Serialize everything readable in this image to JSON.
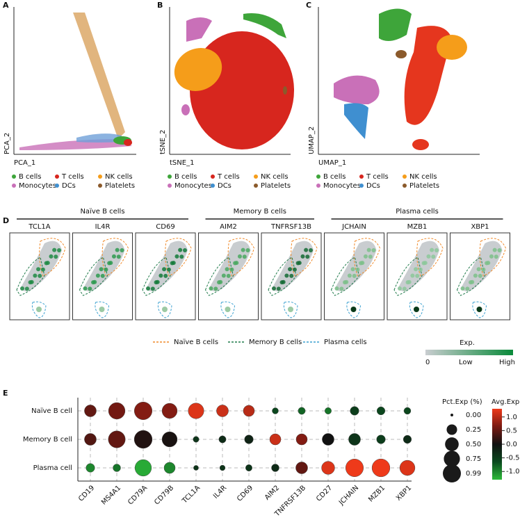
{
  "panel_a": {
    "label": "A",
    "x_label": "PCA_1",
    "y_label": "PCA_2"
  },
  "panel_b": {
    "label": "B",
    "x_label": "tSNE_1",
    "y_label": "tSNE_2"
  },
  "panel_c": {
    "label": "C",
    "x_label": "UMAP_1",
    "y_label": "UMAP_2"
  },
  "cell_types": [
    {
      "name": "B cells",
      "color": "#3ea53a"
    },
    {
      "name": "T cells",
      "color": "#d7261e"
    },
    {
      "name": "NK cells",
      "color": "#f59d1a"
    },
    {
      "name": "Monocytes",
      "color": "#c970b8"
    },
    {
      "name": "DCs",
      "color": "#3f8fd0"
    },
    {
      "name": "Platelets",
      "color": "#8b5a2b"
    }
  ],
  "panel_d": {
    "label": "D",
    "groups": [
      {
        "name": "Naïve B cells",
        "genes": [
          "TCL1A",
          "IL4R",
          "CD69"
        ]
      },
      {
        "name": "Memory B cells",
        "genes": [
          "AIM2",
          "TNFRSF13B"
        ]
      },
      {
        "name": "Plasma cells",
        "genes": [
          "JCHAIN",
          "MZB1",
          "XBP1"
        ]
      }
    ],
    "outlines": [
      {
        "name": "Naïve B cells",
        "color": "#f08a2a"
      },
      {
        "name": "Memory B cells",
        "color": "#1f7a4a"
      },
      {
        "name": "Plasma cells",
        "color": "#3aa0d0"
      }
    ],
    "exp_title": "Exp.",
    "exp_labels": [
      "0",
      "Low",
      "High"
    ]
  },
  "chart_data": {
    "type": "dotplot",
    "label": "E",
    "categories": [
      "CD19",
      "MS4A1",
      "CD79A",
      "CD79B",
      "TCL1A",
      "IL4R",
      "CD69",
      "AIM2",
      "TNFRSF13B",
      "CD27",
      "JCHAIN",
      "MZB1",
      "XBP1"
    ],
    "series": [
      {
        "name": "Naïve B cell",
        "values": [
          0.5,
          0.6,
          0.7,
          0.7,
          1.2,
          1.1,
          1.0,
          -0.6,
          -0.8,
          -0.9,
          -0.5,
          -0.6,
          -0.6
        ],
        "sizes": [
          0.35,
          0.8,
          0.95,
          0.65,
          0.7,
          0.35,
          0.3,
          0.05,
          0.08,
          0.06,
          0.15,
          0.12,
          0.07
        ]
      },
      {
        "name": "Memory B cell",
        "values": [
          0.4,
          0.5,
          0.1,
          0.05,
          -0.4,
          -0.3,
          -0.2,
          1.1,
          0.7,
          0.0,
          -0.4,
          -0.5,
          -0.3
        ],
        "sizes": [
          0.35,
          0.85,
          0.97,
          0.65,
          0.04,
          0.08,
          0.15,
          0.3,
          0.3,
          0.35,
          0.35,
          0.15,
          0.12
        ]
      },
      {
        "name": "Plasma cell",
        "values": [
          -1.0,
          -0.9,
          -1.2,
          -1.0,
          -0.4,
          -0.4,
          -0.4,
          -0.3,
          0.5,
          1.2,
          1.3,
          1.3,
          1.2
        ],
        "sizes": [
          0.15,
          0.1,
          0.8,
          0.3,
          0.02,
          0.03,
          0.06,
          0.1,
          0.35,
          0.45,
          0.95,
          0.97,
          0.65
        ]
      }
    ],
    "size_title": "Pct.Exp (%)",
    "size_ticks": [
      {
        "value": 0,
        "label": "0.00"
      },
      0.25,
      {
        "value": 0.5,
        "label": "0.50"
      },
      0.75,
      0.99
    ],
    "color_title": "Avg.Exp",
    "clim": [
      -1.3,
      1.3
    ],
    "cticks": [
      {
        "value": 1,
        "label": "1.0"
      },
      0.5,
      {
        "value": 0,
        "label": "0.0"
      },
      -0.5,
      {
        "value": -1,
        "label": "-1.0"
      }
    ],
    "colormap": [
      "#2dbb3a",
      "#0a4a1e",
      "#111111",
      "#7a1a12",
      "#ee3a1a"
    ],
    "grid": true
  }
}
